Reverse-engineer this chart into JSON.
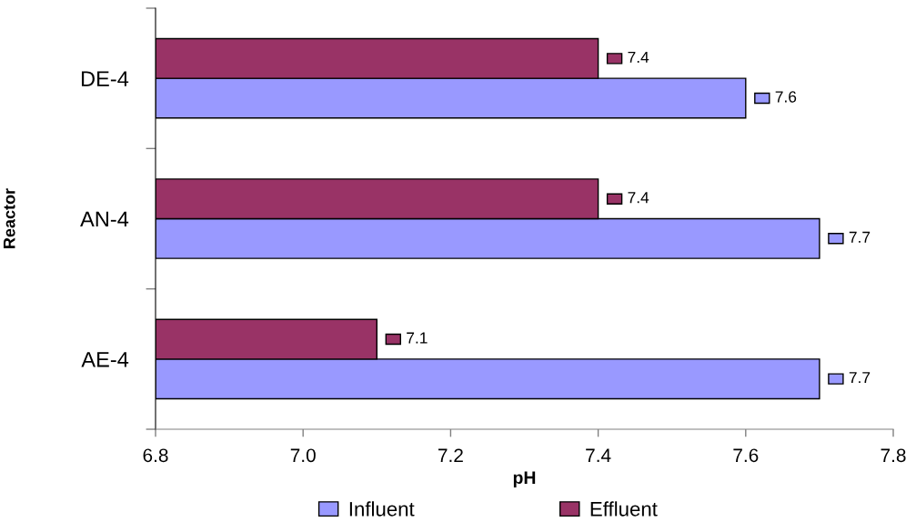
{
  "chart_data": {
    "type": "bar",
    "orientation": "horizontal",
    "categories": [
      "DE-4",
      "AN-4",
      "AE-4"
    ],
    "series": [
      {
        "name": "Influent",
        "color": "#9999ff",
        "values": [
          7.6,
          7.7,
          7.7
        ]
      },
      {
        "name": "Effluent",
        "color": "#993366",
        "values": [
          7.4,
          7.4,
          7.1
        ]
      }
    ],
    "xlabel": "pH",
    "ylabel": "Reactor",
    "xlim": [
      6.8,
      7.8
    ],
    "xticks": [
      6.8,
      {
        "value": 7.0,
        "label": "7.0"
      },
      7.2,
      7.4,
      7.6,
      7.8
    ],
    "data_labels": true,
    "legend": "bottom",
    "grid": false
  }
}
